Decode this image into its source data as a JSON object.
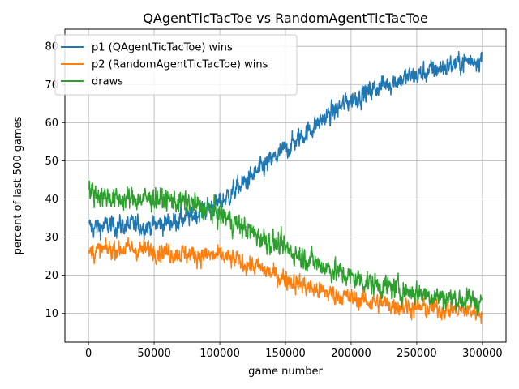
{
  "chart_data": {
    "type": "line",
    "title": "QAgentTicTacToe vs RandomAgentTicTacToe",
    "xlabel": "game number",
    "ylabel": "percent of last 500 games",
    "xlim": [
      -18000,
      318000
    ],
    "ylim": [
      2.5,
      84.5
    ],
    "xticks": [
      0,
      50000,
      100000,
      150000,
      200000,
      250000,
      300000
    ],
    "yticks": [
      10,
      20,
      30,
      40,
      50,
      60,
      70,
      80
    ],
    "grid": true,
    "legend_position": "top-left",
    "x_range": [
      500,
      299500
    ],
    "series": [
      {
        "name": "p1 (QAgentTicTacToe) wins",
        "color": "#1f77b4",
        "noise": 1.6,
        "x": [
          0,
          20000,
          50000,
          75000,
          100000,
          125000,
          150000,
          175000,
          200000,
          225000,
          250000,
          275000,
          300000
        ],
        "values": [
          32.5,
          33,
          33,
          35,
          39,
          46,
          53,
          60,
          66,
          70,
          72.5,
          75,
          77
        ]
      },
      {
        "name": "p2 (RandomAgentTicTacToe) wins",
        "color": "#ff7f0e",
        "noise": 1.5,
        "x": [
          0,
          20000,
          50000,
          75000,
          100000,
          125000,
          150000,
          175000,
          200000,
          225000,
          250000,
          275000,
          300000
        ],
        "values": [
          26,
          27,
          26.5,
          25.5,
          25,
          22.5,
          19,
          16,
          14,
          12.5,
          11.5,
          11,
          10.5
        ]
      },
      {
        "name": "draws",
        "color": "#2ca02c",
        "noise": 1.8,
        "x": [
          0,
          20000,
          50000,
          75000,
          100000,
          125000,
          150000,
          175000,
          200000,
          225000,
          250000,
          275000,
          300000
        ],
        "values": [
          42,
          40,
          40,
          39,
          36,
          31,
          27,
          23,
          19.5,
          17,
          15.5,
          14,
          13
        ]
      }
    ]
  }
}
